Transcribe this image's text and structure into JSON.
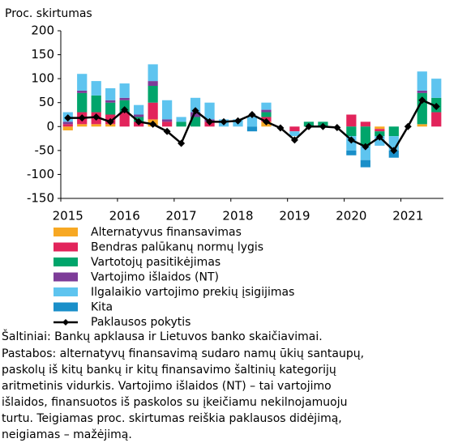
{
  "chart_data": {
    "type": "stacked-bar-line",
    "y_axis_label": "Proc. skirtumas",
    "categories": [
      "2015",
      null,
      null,
      null,
      "2016",
      null,
      null,
      null,
      "2017",
      null,
      null,
      null,
      "2018",
      null,
      null,
      null,
      "2019",
      null,
      null,
      null,
      "2020",
      null,
      null,
      null,
      "2021",
      null,
      null
    ],
    "ylim": [
      -150,
      200
    ],
    "yticks": [
      -150,
      -100,
      -50,
      0,
      50,
      100,
      150,
      200
    ],
    "series": [
      {
        "name": "Alternatyvus finansavimas",
        "color": "#f7a823",
        "values": [
          -8,
          5,
          5,
          5,
          0,
          0,
          15,
          0,
          0,
          0,
          0,
          0,
          0,
          0,
          10,
          0,
          0,
          0,
          0,
          0,
          0,
          0,
          -5,
          0,
          0,
          5,
          0
        ]
      },
      {
        "name": "Bendras palūkanų normų lygis",
        "color": "#e2245b",
        "values": [
          5,
          25,
          25,
          20,
          30,
          10,
          35,
          10,
          0,
          0,
          10,
          0,
          0,
          0,
          10,
          0,
          -10,
          0,
          0,
          0,
          25,
          10,
          -5,
          0,
          0,
          0,
          30
        ]
      },
      {
        "name": "Vartotojų pasitikėjimas",
        "color": "#00a56b",
        "values": [
          0,
          40,
          35,
          25,
          25,
          10,
          35,
          0,
          10,
          20,
          0,
          0,
          0,
          0,
          10,
          0,
          0,
          10,
          10,
          0,
          -20,
          -40,
          -10,
          -20,
          0,
          65,
          30
        ]
      },
      {
        "name": "Vartojimo išlaidos (NT)",
        "color": "#7d3c98",
        "values": [
          5,
          5,
          0,
          5,
          5,
          5,
          10,
          5,
          0,
          10,
          5,
          0,
          0,
          0,
          5,
          0,
          0,
          0,
          0,
          0,
          0,
          0,
          0,
          0,
          0,
          5,
          0
        ]
      },
      {
        "name": "Ilgalaikio vartojimo prekių įsigijimas",
        "color": "#5ec4ef",
        "values": [
          20,
          35,
          30,
          25,
          30,
          20,
          35,
          40,
          10,
          30,
          35,
          15,
          15,
          20,
          15,
          0,
          -10,
          0,
          0,
          0,
          -30,
          -30,
          -20,
          -30,
          0,
          40,
          40
        ]
      },
      {
        "name": "Kita",
        "color": "#1a8fc9",
        "values": [
          0,
          0,
          0,
          0,
          0,
          0,
          0,
          0,
          0,
          0,
          0,
          0,
          0,
          -10,
          0,
          0,
          0,
          0,
          0,
          0,
          -10,
          -15,
          0,
          -15,
          0,
          0,
          0
        ]
      }
    ],
    "line": {
      "name": "Paklausos pokytis",
      "color": "#000000",
      "values": [
        18,
        18,
        20,
        10,
        35,
        10,
        5,
        -10,
        -35,
        33,
        10,
        10,
        12,
        25,
        10,
        -3,
        -28,
        0,
        0,
        -2,
        -28,
        -42,
        -22,
        -50,
        0,
        55,
        42
      ]
    },
    "source": "Šaltiniai: Bankų apklausa ir Lietuvos banko skaičiavimai.",
    "note": [
      "Pastabos: alternatyvų finansavimą sudaro namų ūkių santaupų,",
      "paskolų iš kitų bankų ir kitų finansavimo šaltinių kategorijų",
      "aritmetinis vidurkis. Vartojimo išlaidos (NT) – tai vartojimo",
      "išlaidos, finansuotos iš paskolos su įkeičiamu nekilnojamuoju",
      "turtu. Teigiamas proc. skirtumas reiškia paklausos didėjimą,",
      "neigiamas – mažėjimą."
    ]
  }
}
